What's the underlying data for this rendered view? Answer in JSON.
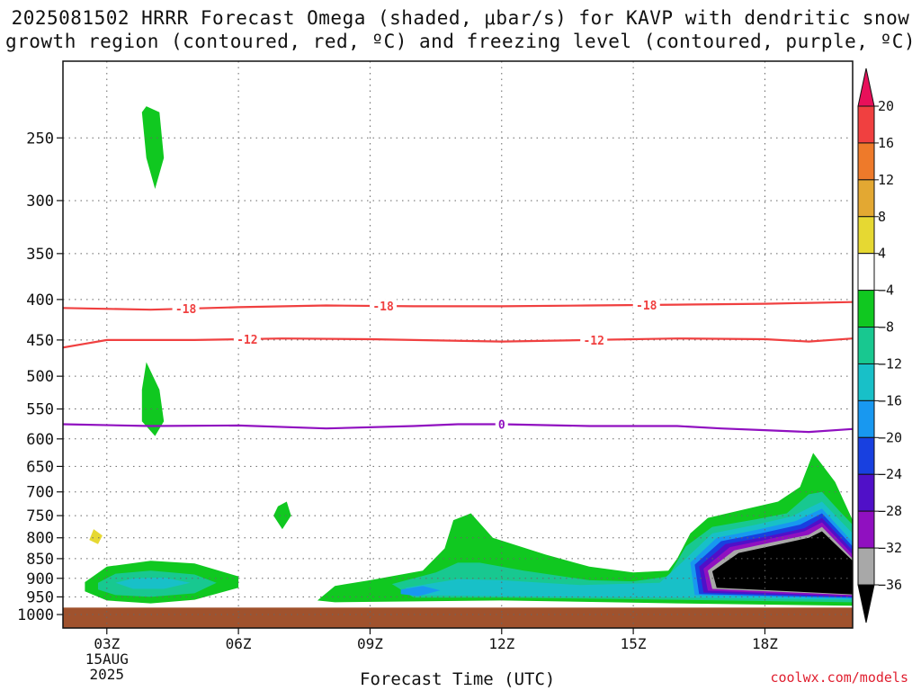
{
  "chart_data": {
    "type": "heatmap",
    "title_line1": "2025081502 HRRR Forecast Omega (shaded, μbar/s) for KAVP with dendritic snow",
    "title_line2": "growth region (contoured, red, ºC) and freezing level (contoured, purple, ºC)",
    "xlabel": "Forecast Time (UTC)",
    "ylabel": "",
    "credit": "coolwx.com/models",
    "x_ticks": [
      "03Z",
      "06Z",
      "09Z",
      "12Z",
      "15Z",
      "18Z"
    ],
    "x_tick_hours": [
      3,
      6,
      9,
      12,
      15,
      18
    ],
    "x_range_hours": [
      2,
      20
    ],
    "date_label": "15AUG",
    "year_label": "2025",
    "y_ticks": [
      250,
      300,
      350,
      400,
      450,
      500,
      550,
      600,
      650,
      700,
      750,
      800,
      850,
      900,
      950,
      1000
    ],
    "y_range": [
      1040,
      200
    ],
    "y_scale": "log-pressure",
    "ground_pressure": 980,
    "colorbar_levels": [
      20,
      16,
      12,
      8,
      4,
      -4,
      -8,
      -12,
      -16,
      -20,
      -24,
      -28,
      -32,
      -36
    ],
    "colorbar_colors": [
      "#e8105a",
      "#f04040",
      "#ee7a2a",
      "#e3a832",
      "#e6d832",
      "#ffffff",
      "#10c820",
      "#18c890",
      "#18c0c8",
      "#1898f0",
      "#1840e0",
      "#5010c8",
      "#9010c0",
      "#a8a8a8",
      "#000000"
    ],
    "contours": [
      {
        "label": "-18",
        "color": "#f04040",
        "points": [
          [
            2,
            410
          ],
          [
            4,
            412
          ],
          [
            6,
            409
          ],
          [
            8,
            407
          ],
          [
            10,
            408
          ],
          [
            12,
            408
          ],
          [
            14,
            407
          ],
          [
            16,
            406
          ],
          [
            18,
            405
          ],
          [
            20,
            403
          ]
        ],
        "label_hours": [
          4.8,
          9.3,
          15.3
        ]
      },
      {
        "label": "-12",
        "color": "#f04040",
        "points": [
          [
            2,
            460
          ],
          [
            2.5,
            455
          ],
          [
            3,
            450
          ],
          [
            5,
            450
          ],
          [
            7,
            448
          ],
          [
            9,
            449
          ],
          [
            12,
            452
          ],
          [
            14,
            450
          ],
          [
            16,
            448
          ],
          [
            18,
            449
          ],
          [
            19,
            452
          ],
          [
            20,
            448
          ]
        ],
        "label_hours": [
          6.2,
          14.1
        ]
      },
      {
        "label": "0",
        "color": "#9010c0",
        "points": [
          [
            2,
            575
          ],
          [
            4,
            578
          ],
          [
            6,
            577
          ],
          [
            8,
            582
          ],
          [
            10,
            578
          ],
          [
            11,
            575
          ],
          [
            12,
            575
          ],
          [
            14,
            578
          ],
          [
            16,
            578
          ],
          [
            17,
            582
          ],
          [
            18,
            585
          ],
          [
            19,
            588
          ],
          [
            20,
            583
          ]
        ],
        "label_hours": [
          12
        ]
      }
    ],
    "series": [
      {
        "level": -4,
        "points": [
          [
            3.9,
            228
          ],
          [
            4.2,
            232
          ],
          [
            4.3,
            265
          ],
          [
            4.1,
            290
          ],
          [
            3.9,
            265
          ],
          [
            3.8,
            232
          ]
        ]
      },
      {
        "level": -4,
        "points": [
          [
            3.9,
            480
          ],
          [
            4.2,
            520
          ],
          [
            4.3,
            570
          ],
          [
            4.1,
            595
          ],
          [
            3.8,
            570
          ],
          [
            3.8,
            520
          ]
        ]
      },
      {
        "level": -4,
        "points": [
          [
            6.9,
            730
          ],
          [
            7.1,
            720
          ],
          [
            7.2,
            750
          ],
          [
            7.0,
            780
          ],
          [
            6.8,
            750
          ]
        ]
      },
      {
        "level": 4,
        "points": [
          [
            4.9,
            425
          ],
          [
            5.2,
            440
          ],
          [
            5.0,
            490
          ],
          [
            4.8,
            455
          ]
        ]
      },
      {
        "level": 4,
        "points": [
          [
            2.1,
            790
          ],
          [
            2.3,
            745
          ],
          [
            2.6,
            725
          ],
          [
            3.0,
            730
          ],
          [
            3.3,
            770
          ],
          [
            3.2,
            830
          ],
          [
            2.8,
            850
          ],
          [
            2.2,
            848
          ],
          [
            2.0,
            830
          ]
        ]
      },
      {
        "level": 8,
        "points": [
          [
            2.7,
            780
          ],
          [
            2.9,
            795
          ],
          [
            2.8,
            815
          ],
          [
            2.6,
            805
          ]
        ]
      },
      {
        "level": 4,
        "points": [
          [
            8.8,
            830
          ],
          [
            9.1,
            845
          ],
          [
            8.8,
            862
          ],
          [
            8.6,
            845
          ]
        ]
      },
      {
        "level": 4,
        "points": [
          [
            16.9,
            690
          ],
          [
            17.1,
            698
          ],
          [
            16.9,
            705
          ],
          [
            16.7,
            698
          ]
        ]
      },
      {
        "level": -4,
        "points": [
          [
            2.5,
            910
          ],
          [
            3,
            870
          ],
          [
            4,
            855
          ],
          [
            5,
            862
          ],
          [
            6,
            895
          ],
          [
            6,
            925
          ],
          [
            5,
            958
          ],
          [
            4,
            968
          ],
          [
            3,
            960
          ],
          [
            2.5,
            935
          ]
        ]
      },
      {
        "level": -8,
        "points": [
          [
            2.8,
            912
          ],
          [
            3.2,
            888
          ],
          [
            4,
            880
          ],
          [
            5,
            890
          ],
          [
            5.5,
            912
          ],
          [
            5,
            940
          ],
          [
            4,
            950
          ],
          [
            3.2,
            945
          ],
          [
            2.8,
            930
          ]
        ]
      },
      {
        "level": -12,
        "points": [
          [
            3.2,
            912
          ],
          [
            3.6,
            900
          ],
          [
            4.3,
            898
          ],
          [
            4.9,
            912
          ],
          [
            4.3,
            928
          ],
          [
            3.6,
            928
          ]
        ]
      },
      {
        "level": -4,
        "points": [
          [
            7.8,
            960
          ],
          [
            8.2,
            920
          ],
          [
            9,
            905
          ],
          [
            10.2,
            880
          ],
          [
            10.7,
            825
          ],
          [
            10.9,
            760
          ],
          [
            11.3,
            745
          ],
          [
            11.8,
            800
          ],
          [
            13,
            840
          ],
          [
            14,
            870
          ],
          [
            15,
            885
          ],
          [
            15.8,
            880
          ],
          [
            16,
            850
          ],
          [
            16.3,
            790
          ],
          [
            16.7,
            755
          ],
          [
            17.6,
            735
          ],
          [
            18.3,
            720
          ],
          [
            18.8,
            690
          ],
          [
            19.1,
            625
          ],
          [
            19.6,
            680
          ],
          [
            20,
            760
          ],
          [
            20,
            975
          ],
          [
            16,
            968
          ],
          [
            12,
            960
          ],
          [
            8.2,
            965
          ]
        ]
      },
      {
        "level": -8,
        "points": [
          [
            9.5,
            915
          ],
          [
            10.5,
            885
          ],
          [
            11,
            860
          ],
          [
            11.5,
            860
          ],
          [
            12.5,
            880
          ],
          [
            14,
            905
          ],
          [
            15,
            908
          ],
          [
            15.8,
            895
          ],
          [
            16.2,
            820
          ],
          [
            16.8,
            775
          ],
          [
            17.8,
            758
          ],
          [
            18.5,
            745
          ],
          [
            19,
            705
          ],
          [
            19.3,
            700
          ],
          [
            19.7,
            740
          ],
          [
            20,
            770
          ],
          [
            20,
            965
          ],
          [
            16,
            958
          ],
          [
            12,
            952
          ],
          [
            10,
            952
          ]
        ]
      },
      {
        "level": -12,
        "points": [
          [
            9.8,
            925
          ],
          [
            11,
            902
          ],
          [
            12,
            905
          ],
          [
            13.8,
            918
          ],
          [
            15.6,
            912
          ],
          [
            16.1,
            860
          ],
          [
            16.8,
            790
          ],
          [
            17.8,
            770
          ],
          [
            18.6,
            752
          ],
          [
            19.3,
            720
          ],
          [
            20,
            790
          ],
          [
            20,
            958
          ],
          [
            16,
            952
          ],
          [
            12,
            948
          ],
          [
            10,
            945
          ]
        ]
      },
      {
        "level": -16,
        "points": [
          [
            9.7,
            930
          ],
          [
            10.2,
            920
          ],
          [
            10.6,
            932
          ],
          [
            10.1,
            948
          ],
          [
            9.7,
            942
          ]
        ]
      },
      {
        "level": -16,
        "points": [
          [
            16.3,
            860
          ],
          [
            16.9,
            800
          ],
          [
            17.8,
            782
          ],
          [
            18.7,
            762
          ],
          [
            19.3,
            735
          ],
          [
            20,
            810
          ],
          [
            20,
            955
          ],
          [
            16.4,
            945
          ]
        ]
      },
      {
        "level": -20,
        "points": [
          [
            16.4,
            865
          ],
          [
            17.0,
            808
          ],
          [
            17.9,
            790
          ],
          [
            18.8,
            770
          ],
          [
            19.3,
            745
          ],
          [
            20,
            820
          ],
          [
            20,
            952
          ],
          [
            16.5,
            942
          ]
        ]
      },
      {
        "level": -24,
        "points": [
          [
            16.5,
            870
          ],
          [
            17.1,
            815
          ],
          [
            18.0,
            798
          ],
          [
            18.9,
            778
          ],
          [
            19.3,
            755
          ],
          [
            20,
            830
          ],
          [
            20,
            950
          ],
          [
            16.6,
            938
          ]
        ]
      },
      {
        "level": -28,
        "points": [
          [
            16.6,
            875
          ],
          [
            17.2,
            822
          ],
          [
            18.0,
            805
          ],
          [
            18.9,
            785
          ],
          [
            19.3,
            765
          ],
          [
            20,
            840
          ],
          [
            20,
            948
          ],
          [
            16.7,
            933
          ]
        ]
      },
      {
        "level": -32,
        "points": [
          [
            16.7,
            880
          ],
          [
            17.3,
            830
          ],
          [
            18.1,
            812
          ],
          [
            19.0,
            793
          ],
          [
            19.3,
            775
          ],
          [
            20,
            850
          ],
          [
            20,
            945
          ],
          [
            16.8,
            928
          ]
        ]
      },
      {
        "level": -36,
        "points": [
          [
            16.8,
            882
          ],
          [
            17.4,
            836
          ],
          [
            18.2,
            818
          ],
          [
            19.0,
            800
          ],
          [
            19.3,
            785
          ],
          [
            20,
            855
          ],
          [
            20,
            943
          ],
          [
            16.9,
            925
          ]
        ]
      }
    ]
  }
}
